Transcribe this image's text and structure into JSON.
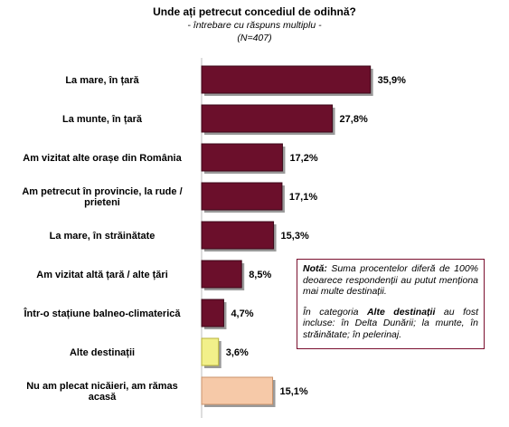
{
  "header": {
    "title": "Unde ați petrecut concediul de odihnă?",
    "subtitle": "- întrebare cu răspuns multiplu -",
    "sample": "(N=407)"
  },
  "note": {
    "label": "Notă:",
    "text1": "Suma procentelor diferă de 100% deoarece respondenții au putut menționa mai multe destinații.",
    "prefix2": "În categoria",
    "bold2": "Alte destinații",
    "text2": "au fost incluse: în Delta Dunării; la munte, în străinătate; în pelerinaj."
  },
  "chart_data": {
    "type": "bar",
    "orientation": "horizontal",
    "categories": [
      "La mare, în țară",
      "La munte, în țară",
      "Am vizitat alte orașe din România",
      "Am petrecut în provincie, la rude / prieteni",
      "La mare, în străinătate",
      "Am vizitat altă țară / alte țări",
      "Într-o stațiune balneo-climaterică",
      "Alte destinații",
      "Nu am plecat nicăieri, am rămas acasă"
    ],
    "values": [
      35.9,
      27.8,
      17.2,
      17.1,
      15.3,
      8.5,
      4.7,
      3.6,
      15.1
    ],
    "value_labels": [
      "35,9%",
      "27,8%",
      "17,2%",
      "17,1%",
      "15,3%",
      "8,5%",
      "4,7%",
      "3,6%",
      "15,1%"
    ],
    "bar_colors": [
      "#6b0f2b",
      "#6b0f2b",
      "#6b0f2b",
      "#6b0f2b",
      "#6b0f2b",
      "#6b0f2b",
      "#6b0f2b",
      "#f2f08a",
      "#f6c9a8"
    ],
    "xlim": [
      0,
      40
    ]
  }
}
